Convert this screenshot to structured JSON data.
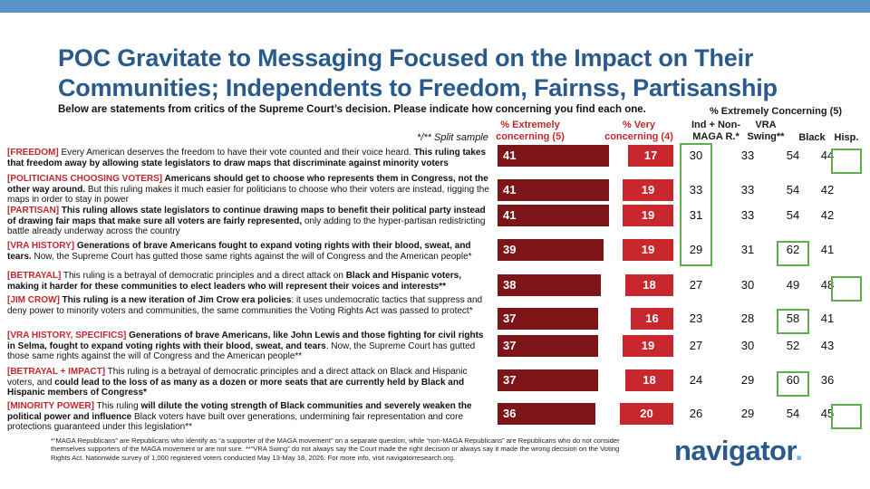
{
  "title": "POC Gravitate to Messaging Focused on the Impact on Their Communities; Independents to Freedom, Fairnss, Partisanship",
  "subtitle": "Below are statements from critics of the Supreme Court’s decision. Please indicate how concerning you find each one.",
  "split_note": "*/** Split sample",
  "columns": {
    "extremely": "% Extremely concerning (5)",
    "very": "% Very concerning (4)",
    "group_header": "% Extremely Concerning (5)",
    "ind": "Ind + Non-MAGA R.*",
    "vra": "VRA Swing**",
    "black": "Black",
    "hisp": "Hisp."
  },
  "chart_data": {
    "type": "bar",
    "categories": [
      "FREEDOM",
      "POLITICIANS CHOOSING VOTERS",
      "PARTISAN",
      "VRA HISTORY",
      "BETRAYAL",
      "JIM CROW",
      "VRA HISTORY, SPECIFICS",
      "BETRAYAL + IMPACT",
      "MINORITY POWER"
    ],
    "series": [
      {
        "name": "% Extremely concerning (5)",
        "values": [
          41,
          41,
          41,
          39,
          38,
          37,
          37,
          37,
          36
        ]
      },
      {
        "name": "% Very concerning (4)",
        "values": [
          17,
          19,
          19,
          19,
          18,
          16,
          19,
          18,
          20
        ]
      }
    ],
    "table": {
      "ind": [
        30,
        33,
        31,
        29,
        27,
        23,
        27,
        24,
        26
      ],
      "vra": [
        33,
        33,
        33,
        31,
        30,
        28,
        30,
        29,
        29
      ],
      "black": [
        54,
        54,
        54,
        62,
        49,
        58,
        52,
        60,
        54
      ],
      "hisp": [
        44,
        42,
        42,
        41,
        48,
        41,
        43,
        36,
        45
      ]
    },
    "highlight_color": "#5fae4e",
    "colors": {
      "extremely": "#7d1418",
      "very": "#c7272d"
    }
  },
  "statements": [
    {
      "tag": "[FREEDOM]",
      "bold1": "",
      "text1": " Every American deserves the freedom to have their vote counted and their voice heard. ",
      "bold2": "This ruling takes that freedom away by allowing state legislators to draw maps that discriminate against minority voters",
      "text2": ""
    },
    {
      "tag": "[POLITICIANS CHOOSING VOTERS]",
      "bold1": " Americans should get to choose who represents them in Congress, not the other way around.",
      "text1": " But this ruling makes it much easier for politicians to choose who their voters are instead, rigging the maps in order to stay in power",
      "bold2": "",
      "text2": ""
    },
    {
      "tag": "[PARTISAN]",
      "bold1": " This ruling allows state legislators to continue drawing maps to benefit their political party instead of drawing fair maps that make sure all voters are fairly represented,",
      "text1": " only adding to the hyper-partisan redistricting battle already underway across the country",
      "bold2": "",
      "text2": ""
    },
    {
      "tag": "[VRA HISTORY]",
      "bold1": " Generations of brave Americans fought to expand voting rights with their blood, sweat, and tears.",
      "text1": " Now, the Supreme Court has gutted those same rights against the will of Congress and the American people*",
      "bold2": "",
      "text2": ""
    },
    {
      "tag": "[BETRAYAL]",
      "bold1": "",
      "text1": " This ruling is a betrayal of democratic principles and a direct attack on ",
      "bold2": "Black and Hispanic voters, making it harder for these communities to elect leaders who will represent their voices and interests**",
      "text2": ""
    },
    {
      "tag": "[JIM CROW]",
      "bold1": " This ruling is a new iteration of Jim Crow era policies",
      "text1": ": it uses undemocratic tactics that suppress and deny power to minority voters and communities, the same communities the Voting Rights Act was passed to protect*",
      "bold2": "",
      "text2": ""
    },
    {
      "tag": "[VRA HISTORY, SPECIFICS]",
      "bold1": " Generations of brave Americans, like John Lewis and those fighting for civil rights in Selma, fought to expand voting rights with their blood, sweat, and tears",
      "text1": ". Now, the Supreme Court has gutted those same rights against the will of Congress and the American people**",
      "bold2": "",
      "text2": ""
    },
    {
      "tag": "[BETRAYAL + IMPACT]",
      "bold1": "",
      "text1": " This ruling is a betrayal of democratic principles and a direct attack on Black and Hispanic voters, and ",
      "bold2": "could lead to the loss of as many as a dozen or more seats that are currently held by Black and Hispanic members of Congress*",
      "text2": ""
    },
    {
      "tag": "[MINORITY POWER]",
      "bold1": "",
      "text1": " This ruling ",
      "bold2": "will dilute the voting strength of Black communities and severely weaken the political power and influence",
      "text2": " Black voters have built over generations, undermining fair representation and core protections guaranteed under this legislation**"
    }
  ],
  "footnote": "*“MAGA Republicans” are Republicans who identify as “a supporter of the MAGA movement” on a separate question, while “non-MAGA Republicans” are Republicans who do not consider themselves supporters of the MAGA movement or are not sure. **“VRA Swing” do not always say the Court made the right decision or always say it made the wrong decision on the Voting Rights Act. Nationwide survey of 1,000 registered voters conducted May 13-May 18, 2026. For more info, visit navigatorresearch.org.",
  "logo": {
    "text": "navigator",
    "dot": "."
  }
}
